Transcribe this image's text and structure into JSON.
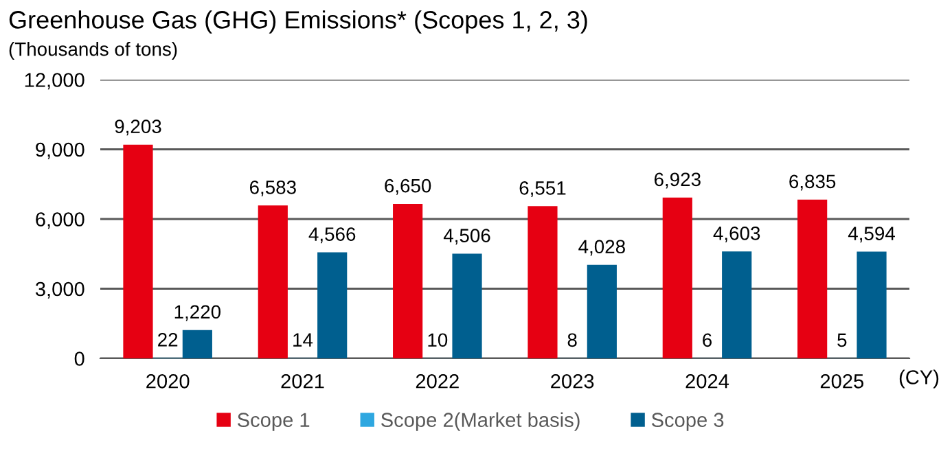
{
  "chart_data": {
    "type": "bar",
    "title": "Greenhouse Gas (GHG) Emissions* (Scopes 1, 2, 3)",
    "ylabel": "(Thousands of tons)",
    "xlabel": "(CY)",
    "categories": [
      "2020",
      "2021",
      "2022",
      "2023",
      "2024",
      "2025"
    ],
    "series": [
      {
        "name": "Scope 1",
        "color": "#e60012",
        "values": [
          9203,
          6583,
          6650,
          6551,
          6923,
          6835
        ],
        "value_labels": [
          "9,203",
          "6,583",
          "6,650",
          "6,551",
          "6,923",
          "6,835"
        ]
      },
      {
        "name": "Scope 2(Market basis)",
        "color": "#2ea7e0",
        "values": [
          22,
          14,
          10,
          8,
          6,
          5
        ],
        "value_labels": [
          "22",
          "14",
          "10",
          "8",
          "6",
          "5"
        ]
      },
      {
        "name": "Scope 3",
        "color": "#005f8f",
        "values": [
          1220,
          4566,
          4506,
          4028,
          4603,
          4594
        ],
        "value_labels": [
          "1,220",
          "4,566",
          "4,506",
          "4,028",
          "4,603",
          "4,594"
        ]
      }
    ],
    "ylim": [
      0,
      12000
    ],
    "yticks": [
      {
        "value": 0,
        "label": "0"
      },
      {
        "value": 3000,
        "label": "3,000"
      },
      {
        "value": 6000,
        "label": "6,000"
      },
      {
        "value": 9000,
        "label": "9,000"
      },
      {
        "value": 12000,
        "label": "12,000"
      }
    ],
    "grid": "y",
    "legend": "bottom"
  }
}
